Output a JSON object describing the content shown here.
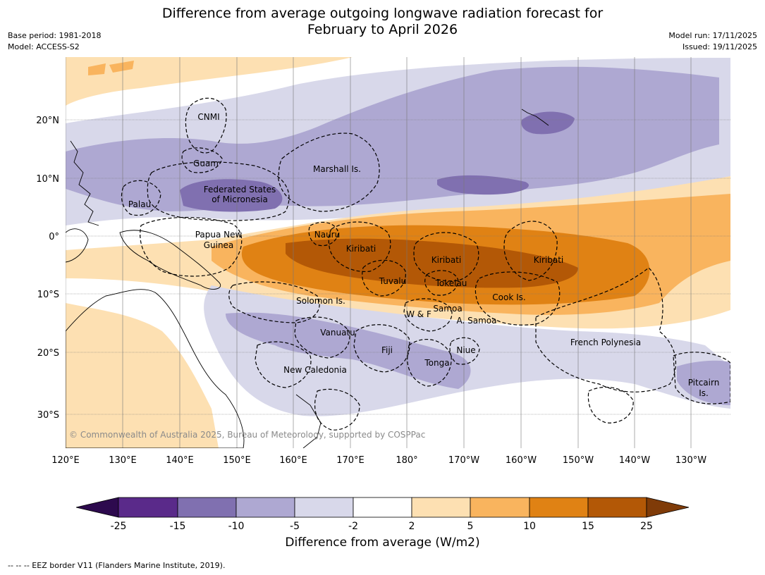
{
  "header": {
    "title_line1": "Difference from average outgoing longwave radiation forecast for",
    "title_line2": "February to April 2026",
    "base_period": "Base period: 1981-2018",
    "model": "Model: ACCESS-S2",
    "model_run": "Model run: 17/11/2025",
    "issued": "Issued: 19/11/2025"
  },
  "map": {
    "lon_labels": [
      "120°E",
      "130°E",
      "140°E",
      "150°E",
      "160°E",
      "170°E",
      "180°",
      "170°W",
      "160°W",
      "150°W",
      "140°W",
      "130°W"
    ],
    "lat_labels": [
      "20°N",
      "10°N",
      "0°",
      "10°S",
      "20°S",
      "30°S"
    ],
    "places": {
      "cnmi": "CNMI",
      "guam": "Guam",
      "marshall": "Marshall Is.",
      "fsm_1": "Federated States",
      "fsm_2": "of Micronesia",
      "palau": "Palau",
      "png_1": "Papua New",
      "png_2": "Guinea",
      "nauru": "Nauru",
      "kiribati_w": "Kiribati",
      "kiribati_c": "Kiribati",
      "kiribati_e": "Kiribati",
      "tuvalu": "Tuvalu",
      "tokelau": "Tokelau",
      "cook": "Cook Is.",
      "solomon": "Solomon Is.",
      "wf": "W & F",
      "samoa": "Samoa",
      "asamoa": "A. Samoa",
      "vanuatu": "Vanuatu",
      "fiji": "Fiji",
      "niue": "Niue",
      "tonga": "Tonga",
      "newcal": "New Caledonia",
      "frpoly": "French Polynesia",
      "pitcairn_1": "Pitcairn",
      "pitcairn_2": "Is."
    },
    "copyright": "© Commonwealth of Australia 2025, Bureau of Meteorology, supported by COSPPac"
  },
  "colorbar": {
    "ticks": [
      "-25",
      "-15",
      "-10",
      "-5",
      "-2",
      "2",
      "5",
      "10",
      "15",
      "25"
    ],
    "colors": {
      "under": "#2d0a4e",
      "b1": "#5a2a8a",
      "b2": "#8070b0",
      "b3": "#aea8d2",
      "b4": "#d8d8ea",
      "b5": "#ffffff",
      "b6": "#fde0b2",
      "b7": "#f9b45e",
      "b8": "#e08214",
      "b9": "#b35806",
      "over": "#7f3b08"
    },
    "title": "Difference from average (W/m2)"
  },
  "footnote": "--  --  -- EEZ border V11 (Flanders Marine Institute, 2019)."
}
